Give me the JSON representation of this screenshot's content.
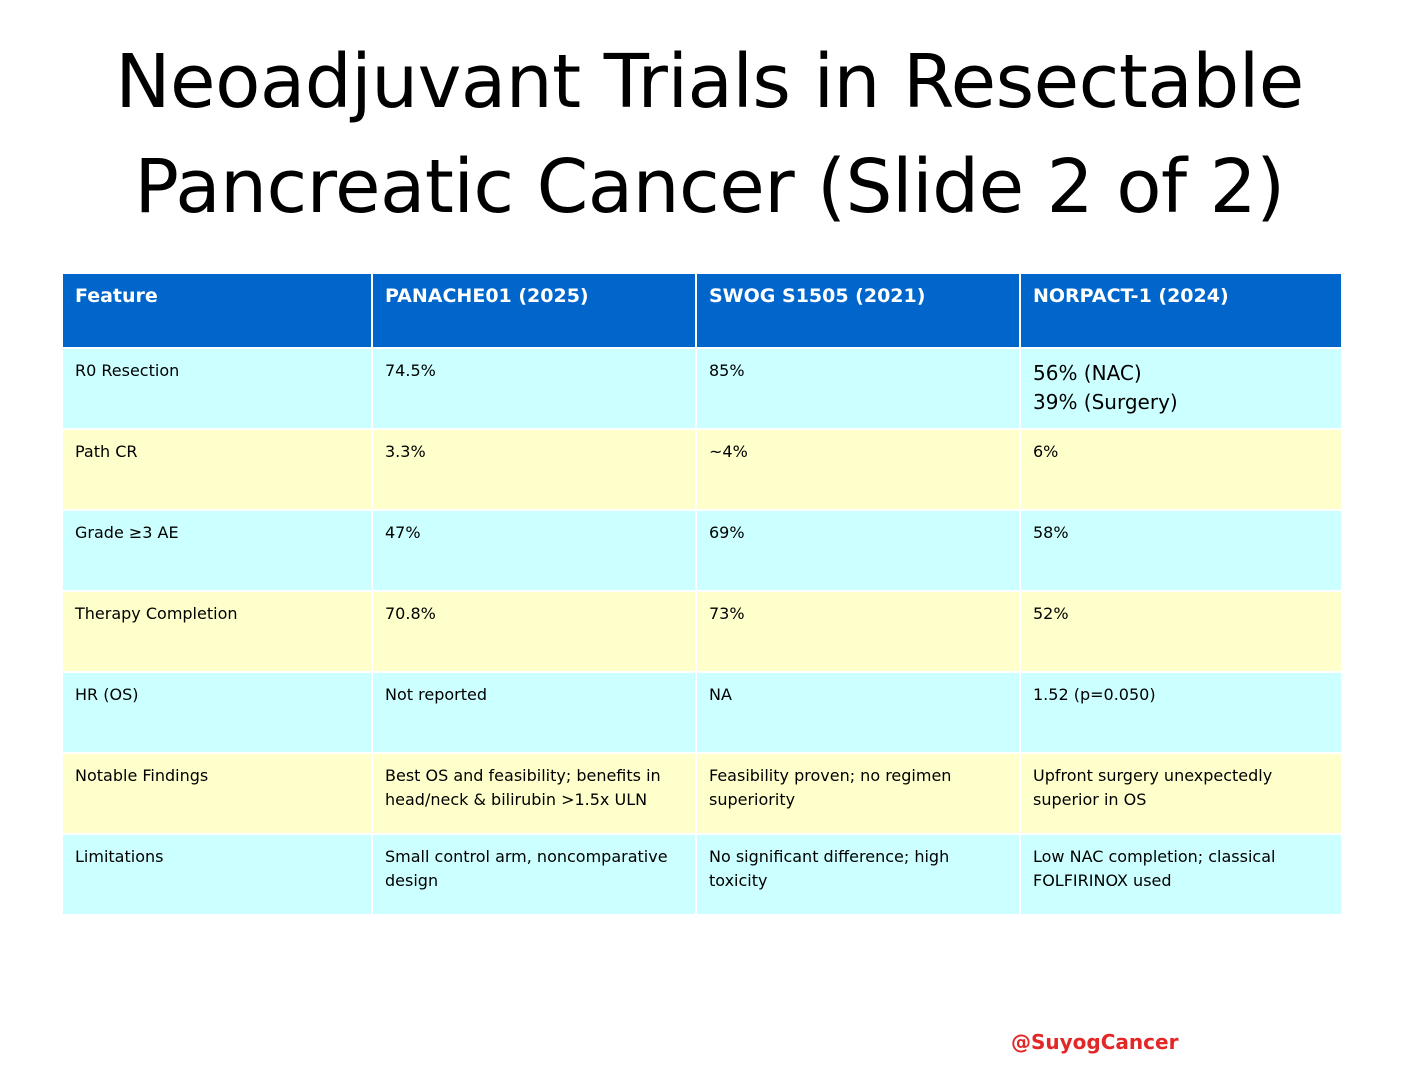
{
  "slide": {
    "title_line1": "Neoadjuvant Trials in Resectable",
    "title_line2": "Pancreatic Cancer (Slide 2 of 2)",
    "handle": "@SuyogCancer"
  },
  "colors": {
    "header_bg": "#0066cc",
    "row_cyan": "#ccffff",
    "row_yellow": "#ffffcc",
    "handle_red": "#e32626"
  },
  "table": {
    "headers": [
      "Feature",
      "PANACHE01 (2025)",
      "SWOG S1505 (2021)",
      "NORPACT-1 (2024)"
    ],
    "rows": [
      {
        "feature": "R0 Resection",
        "panache": "74.5%",
        "swog": "85%",
        "norpact_line1": "56% (NAC)",
        "norpact_line2": "39% (Surgery)"
      },
      {
        "feature": "Path CR",
        "panache": "3.3%",
        "swog": "~4%",
        "norpact": "6%"
      },
      {
        "feature": "Grade ≥3 AE",
        "panache": "47%",
        "swog": "69%",
        "norpact": "58%"
      },
      {
        "feature": "Therapy Completion",
        "panache": "70.8%",
        "swog": "73%",
        "norpact": "52%"
      },
      {
        "feature": "HR (OS)",
        "panache": "Not reported",
        "swog": "NA",
        "norpact": "1.52 (p=0.050)"
      },
      {
        "feature": "Notable Findings",
        "panache_line1": "Best OS and feasibility; benefits in",
        "panache_line2": "head/neck & bilirubin >1.5x ULN",
        "swog_line1": "Feasibility proven; no regimen",
        "swog_line2": "superiority",
        "norpact_line1": "Upfront surgery unexpectedly",
        "norpact_line2": "superior in OS"
      },
      {
        "feature": "Limitations",
        "panache_line1": "Small control arm, noncomparative",
        "panache_line2": "design",
        "swog_line1": "No significant difference; high",
        "swog_line2": "toxicity",
        "norpact_line1": "Low NAC completion; classical",
        "norpact_line2": "FOLFIRINOX used"
      }
    ]
  }
}
